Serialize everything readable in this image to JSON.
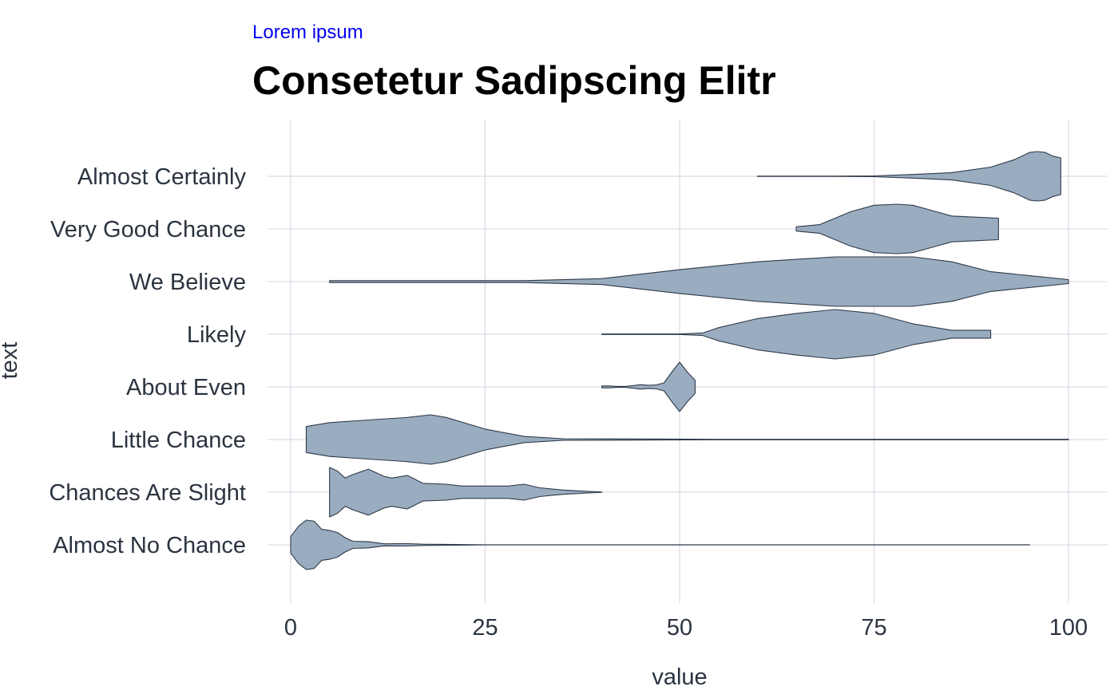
{
  "chart_data": {
    "type": "violin",
    "subtitle": "Lorem ipsum",
    "title": "Consetetur Sadipscing Elitr",
    "xlabel": "value",
    "ylabel": "text",
    "xlim": [
      -3,
      105
    ],
    "x_ticks": [
      0,
      25,
      50,
      75,
      100
    ],
    "grid": true,
    "fill_color": "#9aacc0",
    "stroke_color": "#2f3a48",
    "grid_color": "#d3d3e0",
    "categories": [
      "Almost No Chance",
      "Chances Are Slight",
      "Little Chance",
      "About Even",
      "Likely",
      "We Believe",
      "Very Good Chance",
      "Almost Certainly"
    ],
    "series": [
      {
        "category": "Almost No Chance",
        "min": 0,
        "max": 95,
        "density": [
          [
            0,
            0.8
          ],
          [
            1,
            1.8
          ],
          [
            2,
            2.4
          ],
          [
            3,
            2.3
          ],
          [
            4,
            1.5
          ],
          [
            5,
            1.4
          ],
          [
            6,
            1.2
          ],
          [
            7,
            0.7
          ],
          [
            8,
            0.35
          ],
          [
            10,
            0.3
          ],
          [
            12,
            0.1
          ],
          [
            15,
            0.12
          ],
          [
            17,
            0.06
          ],
          [
            25,
            0.01
          ],
          [
            95,
            0.01
          ]
        ]
      },
      {
        "category": "Chances Are Slight",
        "min": 5,
        "max": 40,
        "density": [
          [
            5,
            1.4
          ],
          [
            6,
            1.2
          ],
          [
            7,
            0.8
          ],
          [
            8,
            1.0
          ],
          [
            10,
            1.3
          ],
          [
            12,
            0.9
          ],
          [
            13,
            0.8
          ],
          [
            15,
            0.95
          ],
          [
            17,
            0.5
          ],
          [
            20,
            0.45
          ],
          [
            22,
            0.35
          ],
          [
            25,
            0.35
          ],
          [
            28,
            0.35
          ],
          [
            30,
            0.45
          ],
          [
            32,
            0.25
          ],
          [
            35,
            0.12
          ],
          [
            38,
            0.05
          ],
          [
            40,
            0.01
          ]
        ]
      },
      {
        "category": "Little Chance",
        "min": 2,
        "max": 100,
        "density": [
          [
            2,
            0.5
          ],
          [
            5,
            0.65
          ],
          [
            10,
            0.75
          ],
          [
            15,
            0.85
          ],
          [
            18,
            0.95
          ],
          [
            20,
            0.85
          ],
          [
            25,
            0.4
          ],
          [
            30,
            0.12
          ],
          [
            35,
            0.03
          ],
          [
            45,
            0.02
          ],
          [
            55,
            0.01
          ],
          [
            100,
            0.01
          ]
        ]
      },
      {
        "category": "About Even",
        "min": 40,
        "max": 52,
        "density": [
          [
            40,
            0.2
          ],
          [
            41,
            0.2
          ],
          [
            42,
            0.1
          ],
          [
            43,
            0.1
          ],
          [
            44,
            0.25
          ],
          [
            45,
            0.45
          ],
          [
            46,
            0.3
          ],
          [
            47,
            0.4
          ],
          [
            48,
            0.8
          ],
          [
            49,
            3.0
          ],
          [
            50,
            5.0
          ],
          [
            51,
            3.0
          ],
          [
            52,
            1.3
          ]
        ]
      },
      {
        "category": "Likely",
        "min": 40,
        "max": 90,
        "density": [
          [
            40,
            0.01
          ],
          [
            50,
            0.01
          ],
          [
            53,
            0.05
          ],
          [
            55,
            0.25
          ],
          [
            60,
            0.6
          ],
          [
            65,
            0.8
          ],
          [
            70,
            0.95
          ],
          [
            75,
            0.8
          ],
          [
            80,
            0.4
          ],
          [
            85,
            0.15
          ],
          [
            90,
            0.15
          ]
        ]
      },
      {
        "category": "We Believe",
        "min": 5,
        "max": 100,
        "density": [
          [
            5,
            0.01
          ],
          [
            30,
            0.01
          ],
          [
            40,
            0.03
          ],
          [
            50,
            0.12
          ],
          [
            60,
            0.2
          ],
          [
            70,
            0.25
          ],
          [
            75,
            0.25
          ],
          [
            80,
            0.25
          ],
          [
            85,
            0.2
          ],
          [
            90,
            0.1
          ],
          [
            95,
            0.06
          ],
          [
            100,
            0.02
          ]
        ]
      },
      {
        "category": "Very Good Chance",
        "min": 65,
        "max": 91,
        "density": [
          [
            65,
            0.1
          ],
          [
            68,
            0.2
          ],
          [
            70,
            0.5
          ],
          [
            72,
            0.8
          ],
          [
            75,
            1.1
          ],
          [
            78,
            1.15
          ],
          [
            80,
            1.1
          ],
          [
            83,
            0.8
          ],
          [
            85,
            0.6
          ],
          [
            88,
            0.55
          ],
          [
            91,
            0.5
          ]
        ]
      },
      {
        "category": "Almost Certainly",
        "min": 60,
        "max": 99,
        "density": [
          [
            60,
            0.01
          ],
          [
            70,
            0.01
          ],
          [
            75,
            0.02
          ],
          [
            80,
            0.1
          ],
          [
            85,
            0.2
          ],
          [
            90,
            0.5
          ],
          [
            93,
            0.9
          ],
          [
            95,
            1.3
          ],
          [
            96,
            1.35
          ],
          [
            97,
            1.3
          ],
          [
            98,
            1.1
          ],
          [
            99,
            1.0
          ]
        ]
      }
    ]
  }
}
